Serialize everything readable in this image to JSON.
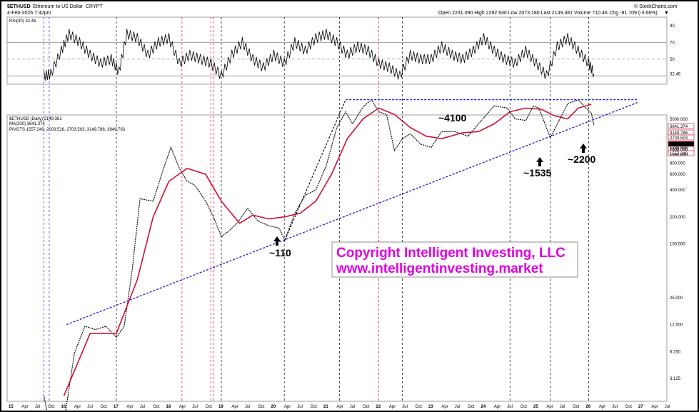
{
  "header": {
    "symbol": "$ETHUSD",
    "name": "Ethereum to US Dollar",
    "exchange": "CRYPT",
    "date": "4-Feb-2026 7:42pm",
    "source": "© StockCharts.com",
    "ohlc": "Open 2231.090  High 2292.930  Low 2073.180  Last 2149.381  Volume 710.4K  Chg -81.709 (-3.66%)",
    "chg_arrow": "▼"
  },
  "rsi_panel": {
    "label": "RSI(30) 32.46",
    "levels": [
      "90",
      "70",
      "50",
      "32.46"
    ],
    "value": 32.46
  },
  "price_panel": {
    "legend": [
      {
        "text": "$ETHUSD (Daily) 2149.381",
        "color": "#000000"
      },
      {
        "text": "MA(200) 3641.374",
        "color": "#d01030"
      },
      {
        "text": "PIVOTS 1557.240, 2003.526, 2703.503, 3149.786, 3849.763",
        "color": "#d01030"
      }
    ],
    "right_labels": [
      "5000.000",
      "3641.374",
      "3149.786",
      "2703.503",
      "2149.381",
      "2003.526",
      "1900.000",
      "1557.240",
      "1200.000",
      "1000.000",
      "800.000",
      "600.000",
      "400.000",
      "200.000",
      "100.000",
      "25.000",
      "12.500",
      "6.250",
      "3.125"
    ]
  },
  "chart_data": {
    "type": "line",
    "title": "$ETHUSD Ethereum to US Dollar CRYPT",
    "y_scale": "log",
    "x_ticks": [
      "15",
      "Apr",
      "Jul",
      "Oct",
      "16",
      "Apr",
      "Jul",
      "Oct",
      "17",
      "Apr",
      "Jul",
      "Oct",
      "18",
      "Apr",
      "Jul",
      "Oct",
      "19",
      "Apr",
      "Jul",
      "Oct",
      "20",
      "Apr",
      "Jul",
      "Oct",
      "21",
      "Apr",
      "Jul",
      "Oct",
      "22",
      "Apr",
      "Jul",
      "Oct",
      "23",
      "Apr",
      "Jul",
      "Oct",
      "24",
      "Apr",
      "Jul",
      "Oct",
      "25",
      "Apr",
      "Jul",
      "Oct",
      "26",
      "Apr",
      "Jul",
      "Oct",
      "27",
      "Apr",
      "Jul"
    ],
    "price_x": [
      2015.62,
      2015.75,
      2016.0,
      2016.2,
      2016.4,
      2016.6,
      2016.8,
      2017.0,
      2017.15,
      2017.3,
      2017.45,
      2017.7,
      2017.9,
      2018.04,
      2018.2,
      2018.35,
      2018.5,
      2018.7,
      2018.85,
      2019.0,
      2019.15,
      2019.3,
      2019.5,
      2019.7,
      2019.9,
      2020.1,
      2020.21,
      2020.4,
      2020.6,
      2020.8,
      2021.0,
      2021.2,
      2021.37,
      2021.5,
      2021.7,
      2021.86,
      2022.0,
      2022.15,
      2022.3,
      2022.45,
      2022.6,
      2022.8,
      2023.0,
      2023.2,
      2023.45,
      2023.7,
      2023.9,
      2024.2,
      2024.45,
      2024.6,
      2024.8,
      2024.95,
      2025.05,
      2025.27,
      2025.45,
      2025.6,
      2025.8,
      2025.95,
      2026.05,
      2026.1
    ],
    "price_y": [
      2.0,
      0.8,
      1.0,
      6.0,
      12.0,
      11.0,
      12.0,
      9.0,
      12.0,
      50.0,
      320.0,
      300.0,
      700.0,
      1200.0,
      700.0,
      500.0,
      450.0,
      300.0,
      200.0,
      120.0,
      140.0,
      170.0,
      250.0,
      180.0,
      160.0,
      150.0,
      110.0,
      220.0,
      350.0,
      400.0,
      750.0,
      2000.0,
      3000.0,
      2200.0,
      3400.0,
      4100.0,
      3000.0,
      2800.0,
      1100.0,
      1500.0,
      1700.0,
      1300.0,
      1200.0,
      1800.0,
      1800.0,
      1600.0,
      2200.0,
      3500.0,
      3300.0,
      2500.0,
      2400.0,
      3500.0,
      3300.0,
      1535.0,
      2500.0,
      3700.0,
      4100.0,
      3300.0,
      2900.0,
      2149.381
    ],
    "ma200_x": [
      2016.0,
      2016.5,
      2017.0,
      2017.4,
      2017.7,
      2018.0,
      2018.35,
      2018.7,
      2019.0,
      2019.35,
      2019.6,
      2019.9,
      2020.2,
      2020.5,
      2020.8,
      2021.1,
      2021.4,
      2021.7,
      2022.0,
      2022.3,
      2022.6,
      2022.9,
      2023.2,
      2023.6,
      2023.9,
      2024.2,
      2024.5,
      2024.8,
      2025.1,
      2025.35,
      2025.6,
      2025.8,
      2026.05
    ],
    "ma200_y": [
      2.0,
      10.0,
      10.0,
      40.0,
      200.0,
      500.0,
      700.0,
      600.0,
      300.0,
      170.0,
      210.0,
      190.0,
      200.0,
      220.0,
      300.0,
      600.0,
      1500.0,
      2500.0,
      3300.0,
      2800.0,
      2000.0,
      1600.0,
      1500.0,
      1750.0,
      1800.0,
      2200.0,
      3000.0,
      3300.0,
      3200.0,
      2700.0,
      2500.0,
      3300.0,
      3641.374
    ],
    "rsi_x": [
      2015.62,
      2015.75,
      2015.95,
      2016.1,
      2016.3,
      2016.5,
      2016.7,
      2016.9,
      2017.05,
      2017.2,
      2017.4,
      2017.6,
      2017.8,
      2018.0,
      2018.2,
      2018.4,
      2018.6,
      2018.8,
      2019.0,
      2019.2,
      2019.4,
      2019.6,
      2019.8,
      2020.0,
      2020.2,
      2020.4,
      2020.6,
      2020.8,
      2021.0,
      2021.2,
      2021.4,
      2021.6,
      2021.8,
      2022.0,
      2022.2,
      2022.4,
      2022.6,
      2022.8,
      2023.0,
      2023.2,
      2023.4,
      2023.6,
      2023.8,
      2024.0,
      2024.2,
      2024.4,
      2024.6,
      2024.8,
      2025.0,
      2025.2,
      2025.4,
      2025.6,
      2025.8,
      2026.0,
      2026.1
    ],
    "rsi_y": [
      30,
      32,
      60,
      80,
      70,
      55,
      45,
      50,
      35,
      80,
      75,
      55,
      70,
      75,
      45,
      55,
      50,
      45,
      30,
      55,
      70,
      50,
      40,
      55,
      45,
      70,
      60,
      75,
      80,
      70,
      55,
      65,
      60,
      45,
      40,
      30,
      55,
      50,
      50,
      65,
      55,
      50,
      60,
      75,
      60,
      50,
      45,
      60,
      45,
      30,
      65,
      75,
      60,
      45,
      32.46
    ],
    "rsi_range": [
      20,
      100
    ],
    "annotations": [
      "~4100",
      "~110",
      "~1535",
      "~2200"
    ],
    "copyright": [
      "Copyright Intelligent Investing, LLC",
      "www.intelligentinvesting.market"
    ],
    "colors": {
      "price": "#000000",
      "ma": "#d01030",
      "trend": "#1a1ad8",
      "copy_text": "#e000e0"
    }
  }
}
